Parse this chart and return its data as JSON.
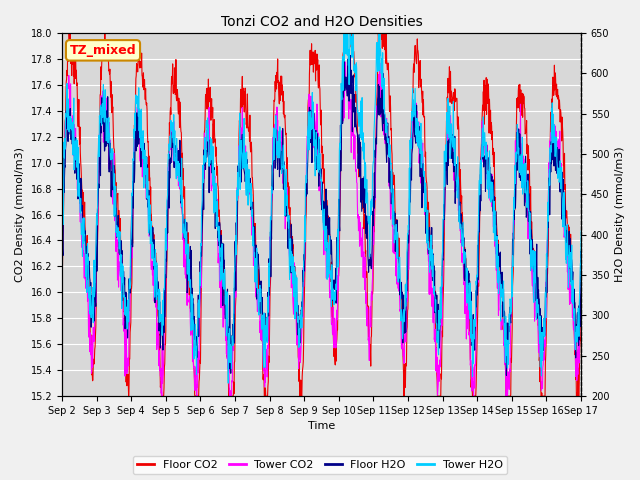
{
  "title": "Tonzi CO2 and H2O Densities",
  "xlabel": "Time",
  "ylabel_left": "CO2 Density (mmol/m3)",
  "ylabel_right": "H2O Density (mmol/m3)",
  "ylim_left": [
    15.2,
    18.0
  ],
  "ylim_right": [
    200,
    650
  ],
  "xtick_labels": [
    "Sep 2",
    "Sep 3",
    "Sep 4",
    "Sep 5",
    "Sep 6",
    "Sep 7",
    "Sep 8",
    "Sep 9",
    "Sep 10",
    "Sep 11",
    "Sep 12",
    "Sep 13",
    "Sep 14",
    "Sep 15",
    "Sep 16",
    "Sep 17"
  ],
  "annotation_text": "TZ_mixed",
  "annotation_bg": "#ffffcc",
  "annotation_border": "#cc8800",
  "colors": {
    "floor_co2": "#ee0000",
    "tower_co2": "#ff00ff",
    "floor_h2o": "#000088",
    "tower_h2o": "#00ccff"
  },
  "legend_labels": [
    "Floor CO2",
    "Tower CO2",
    "Floor H2O",
    "Tower H2O"
  ],
  "plot_bg_color": "#d8d8d8",
  "fig_bg_color": "#f0f0f0",
  "grid_color": "#ffffff",
  "n_days": 15,
  "pts_per_day": 96,
  "linewidth": 0.8,
  "title_fontsize": 10,
  "axis_fontsize": 8,
  "tick_fontsize": 7,
  "legend_fontsize": 8
}
